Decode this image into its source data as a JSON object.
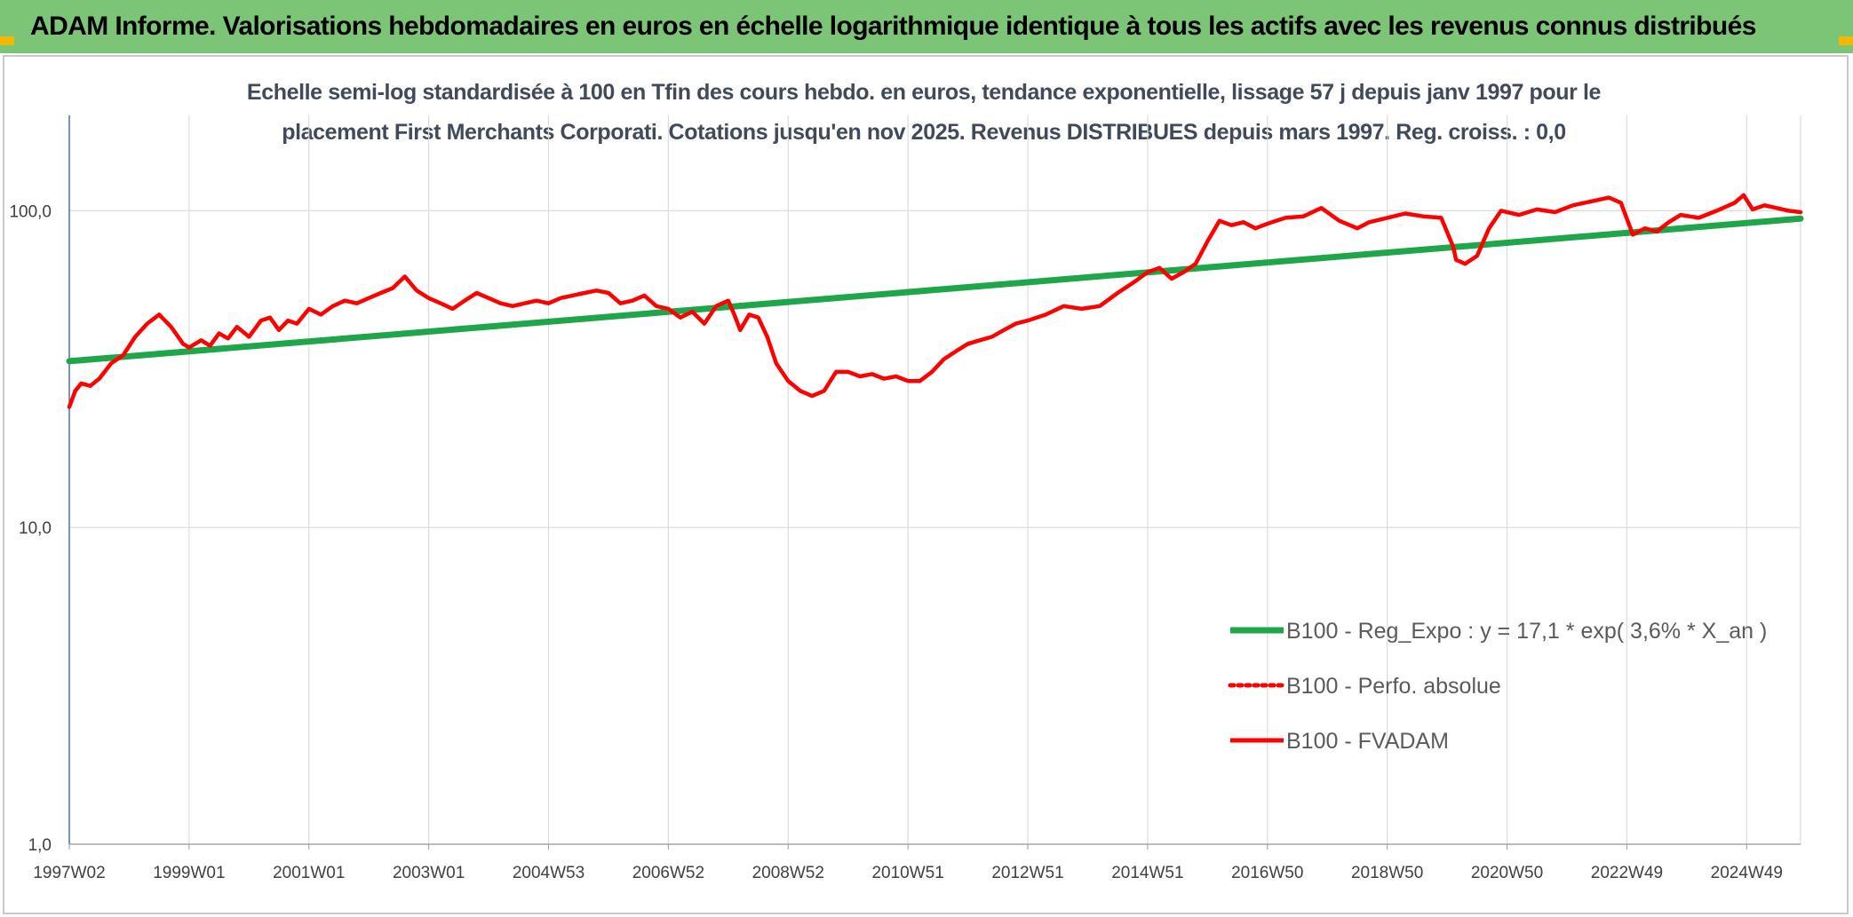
{
  "header": {
    "title": "ADAM Informe. Valorisations hebdomadaires en euros en échelle logarithmique identique à tous les actifs avec les revenus connus distribués"
  },
  "chart_data": {
    "type": "line",
    "title": "Echelle semi-log standardisée à 100 en Tfin des cours hebdo. en euros, tendance exponentielle, lissage 57 j depuis janv 1997 pour le",
    "subtitle": "placement First Merchants Corporati. Cotations jusqu'en nov 2025. Revenus DISTRIBUES depuis mars 1997. Reg. croiss. : 0,0",
    "y_scale": "log",
    "ylim": [
      1,
      200
    ],
    "xlim": [
      1997.0,
      2025.9
    ],
    "y_ticks": [
      {
        "value": 1,
        "label": "1,0"
      },
      {
        "value": 10,
        "label": "10,0"
      },
      {
        "value": 100,
        "label": "100,0"
      }
    ],
    "x_ticks": [
      {
        "value": 1997.0,
        "label": "1997W02"
      },
      {
        "value": 1999.0,
        "label": "1999W01"
      },
      {
        "value": 2001.0,
        "label": "2001W01"
      },
      {
        "value": 2003.0,
        "label": "2003W01"
      },
      {
        "value": 2005.0,
        "label": "2004W53"
      },
      {
        "value": 2007.0,
        "label": "2006W52"
      },
      {
        "value": 2009.0,
        "label": "2008W52"
      },
      {
        "value": 2011.0,
        "label": "2010W51"
      },
      {
        "value": 2013.0,
        "label": "2012W51"
      },
      {
        "value": 2015.0,
        "label": "2014W51"
      },
      {
        "value": 2017.0,
        "label": "2016W50"
      },
      {
        "value": 2019.0,
        "label": "2018W50"
      },
      {
        "value": 2021.0,
        "label": "2020W50"
      },
      {
        "value": 2023.0,
        "label": "2022W49"
      },
      {
        "value": 2025.0,
        "label": "2024W49"
      }
    ],
    "grid": true,
    "legend_position": "bottom-right",
    "series": [
      {
        "name": "B100 - Reg_Expo : y = 17,1 * exp( 3,6% *  X_an )",
        "color": "#1fa64a",
        "style": "solid",
        "x": [
          1997.0,
          2025.9
        ],
        "y": [
          33.5,
          94.5
        ]
      },
      {
        "name": "B100 - Perfo. absolue",
        "color": "#ff0000",
        "style": "dotted",
        "x": [],
        "y": []
      },
      {
        "name": "B100 - FVADAM",
        "color": "#ff0000",
        "style": "solid",
        "x": [
          1997.0,
          1997.1,
          1997.2,
          1997.35,
          1997.5,
          1997.7,
          1997.9,
          1998.1,
          1998.3,
          1998.5,
          1998.7,
          1998.9,
          1999.0,
          1999.2,
          1999.35,
          1999.5,
          1999.65,
          1999.8,
          2000.0,
          2000.2,
          2000.35,
          2000.5,
          2000.65,
          2000.8,
          2001.0,
          2001.2,
          2001.4,
          2001.6,
          2001.8,
          2002.0,
          2002.2,
          2002.4,
          2002.6,
          2002.8,
          2003.0,
          2003.2,
          2003.4,
          2003.6,
          2003.8,
          2004.0,
          2004.2,
          2004.4,
          2004.6,
          2004.8,
          2005.0,
          2005.2,
          2005.4,
          2005.6,
          2005.8,
          2006.0,
          2006.2,
          2006.4,
          2006.6,
          2006.8,
          2007.0,
          2007.2,
          2007.4,
          2007.6,
          2007.8,
          2008.0,
          2008.1,
          2008.2,
          2008.35,
          2008.5,
          2008.65,
          2008.8,
          2009.0,
          2009.2,
          2009.4,
          2009.6,
          2009.8,
          2010.0,
          2010.2,
          2010.4,
          2010.6,
          2010.8,
          2011.0,
          2011.2,
          2011.4,
          2011.6,
          2011.8,
          2012.0,
          2012.2,
          2012.4,
          2012.6,
          2012.8,
          2013.0,
          2013.3,
          2013.6,
          2013.9,
          2014.2,
          2014.5,
          2014.8,
          2015.0,
          2015.2,
          2015.4,
          2015.6,
          2015.8,
          2016.0,
          2016.2,
          2016.4,
          2016.6,
          2016.8,
          2017.0,
          2017.3,
          2017.6,
          2017.9,
          2018.2,
          2018.5,
          2018.7,
          2019.0,
          2019.3,
          2019.6,
          2019.9,
          2020.1,
          2020.15,
          2020.3,
          2020.5,
          2020.7,
          2020.9,
          2021.2,
          2021.5,
          2021.8,
          2022.1,
          2022.4,
          2022.7,
          2022.9,
          2023.1,
          2023.3,
          2023.5,
          2023.7,
          2023.9,
          2024.2,
          2024.5,
          2024.8,
          2024.95,
          2025.1,
          2025.3,
          2025.5,
          2025.7,
          2025.9
        ],
        "y": [
          24.0,
          27.0,
          28.5,
          28.0,
          29.5,
          33.0,
          35.0,
          40.0,
          44.0,
          47.0,
          43.0,
          38.0,
          37.0,
          39.0,
          37.5,
          41.0,
          39.5,
          43.0,
          40.0,
          45.0,
          46.0,
          42.0,
          45.0,
          44.0,
          49.0,
          47.0,
          50.0,
          52.0,
          51.0,
          53.0,
          55.0,
          57.0,
          62.0,
          56.0,
          53.0,
          51.0,
          49.0,
          52.0,
          55.0,
          53.0,
          51.0,
          50.0,
          51.0,
          52.0,
          51.0,
          53.0,
          54.0,
          55.0,
          56.0,
          55.0,
          51.0,
          52.0,
          54.0,
          50.0,
          49.0,
          46.0,
          48.0,
          44.0,
          50.0,
          52.0,
          47.0,
          42.0,
          47.0,
          46.0,
          40.0,
          33.0,
          29.0,
          27.0,
          26.0,
          27.0,
          31.0,
          31.0,
          30.0,
          30.5,
          29.5,
          30.0,
          29.0,
          29.0,
          31.0,
          34.0,
          36.0,
          38.0,
          39.0,
          40.0,
          42.0,
          44.0,
          45.0,
          47.0,
          50.0,
          49.0,
          50.0,
          55.0,
          60.0,
          64.0,
          66.0,
          61.0,
          64.0,
          68.0,
          80.0,
          93.0,
          90.0,
          92.0,
          88.0,
          91.0,
          95.0,
          96.0,
          102.0,
          93.0,
          88.0,
          92.0,
          95.0,
          98.0,
          96.0,
          95.0,
          77.0,
          70.0,
          68.0,
          72.0,
          88.0,
          100.0,
          97.0,
          101.0,
          99.0,
          104.0,
          107.0,
          110.0,
          106.0,
          84.0,
          88.0,
          86.0,
          92.0,
          97.0,
          95.0,
          100.0,
          106.0,
          112.0,
          101.0,
          104.0,
          102.0,
          100.0,
          99.0
        ]
      }
    ]
  }
}
